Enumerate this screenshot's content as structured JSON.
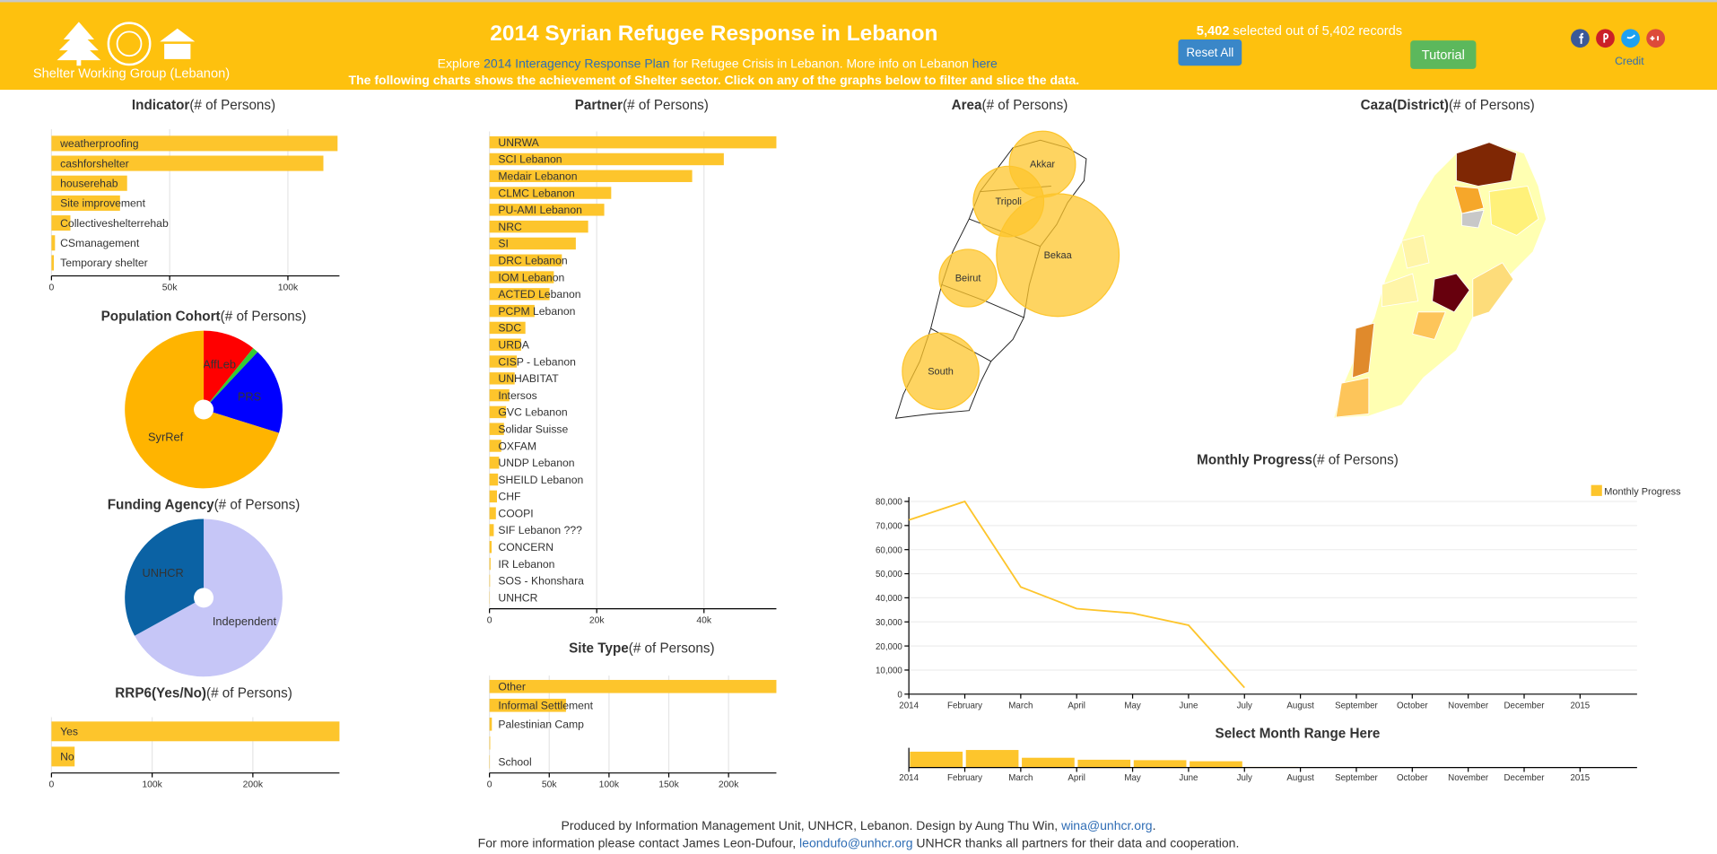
{
  "header": {
    "logo_caption": "Shelter Working Group (Lebanon)",
    "title": "2014 Syrian Refugee Response in Lebanon",
    "intro": [
      "Explore ",
      "2014 Interagency Response Plan",
      " for Refugee Crisis in Lebanon. More info on Lebanon ",
      "here"
    ],
    "instructions": "The following charts shows the achievement of Shelter sector. Click on any of the graphs below to filter and slice the data.",
    "records": {
      "selected": "5,402",
      "selected_text": " selected out of ",
      "total": "5,402",
      "total_text": " records"
    },
    "reset": "Reset All",
    "tutorial": "Tutorial",
    "credit": "Credit"
  },
  "footer": {
    "line1": [
      "Produced by Information Management Unit, UNHCR, Lebanon. Design by Aung Thu Win, ",
      "wina@unhcr.org",
      "."
    ],
    "line2": [
      "For more information please contact James Leon-Dufour, ",
      "leondufo@unhcr.org",
      " UNHCR thanks all partners for their data and cooperation."
    ]
  },
  "chart_data": [
    {
      "type": "hbar",
      "title": "Indicator",
      "unit": "(# of Persons)",
      "categories": [
        "weatherproofing",
        "cashforshelter",
        "houserehab",
        "Site improvement",
        "Collectiveshelterrehab",
        "CSmanagement",
        "Temporary shelter"
      ],
      "values": [
        121000,
        115000,
        32000,
        29000,
        8000,
        1500,
        1000
      ],
      "color": "#fdc52c",
      "xlim": [
        0,
        121800
      ],
      "xticks": [
        0,
        {
          "value": 50000,
          "label": "50k"
        },
        {
          "value": 100000,
          "label": "100k"
        }
      ],
      "grid": true
    },
    {
      "type": "pie",
      "title": "Population Cohort",
      "unit": "(# of Persons)",
      "categories": [
        "AffLeb",
        null,
        "PRS",
        "SyrRef"
      ],
      "values": [
        10.8,
        1.2,
        17.8,
        70.2
      ],
      "colors": [
        "#ff0000",
        "#33cc33",
        "#0000ff",
        "#ffb400"
      ]
    },
    {
      "type": "pie",
      "title": "Funding Agency",
      "unit": "(# of Persons)",
      "categories": [
        "Independent",
        "UNHCR"
      ],
      "values": [
        67,
        33
      ],
      "colors": [
        "#c6c6f7",
        "#0b62a4"
      ]
    },
    {
      "type": "hbar",
      "title": "RRP6(Yes/No)",
      "unit": "(# of Persons)",
      "categories": [
        "Yes",
        "No"
      ],
      "values": [
        286000,
        23000
      ],
      "color": "#fdc52c",
      "xlim": [
        0,
        286000
      ],
      "xticks": [
        0,
        {
          "value": 100000,
          "label": "100k"
        },
        {
          "value": 200000,
          "label": "200k"
        }
      ],
      "grid": true
    },
    {
      "type": "hbar",
      "title": "Partner",
      "unit": "(# of Persons)",
      "categories": [
        "UNRWA",
        "SCI Lebanon",
        "Medair Lebanon",
        "CLMC Lebanon",
        "PU-AMI Lebanon",
        "NRC",
        "SI",
        "DRC Lebanon",
        "IOM Lebanon",
        "ACTED Lebanon",
        "PCPM Lebanon",
        "SDC",
        "URDA",
        "CISP - Lebanon",
        "UNHABITAT",
        "Intersos",
        "GVC Lebanon",
        "Solidar Suisse",
        "OXFAM",
        "UNDP Lebanon",
        "SHEILD Lebanon",
        "CHF",
        "COOPI",
        "SIF Lebanon ???",
        "CONCERN",
        "IR Lebanon",
        "SOS - Khonshara",
        "UNHCR"
      ],
      "values": [
        53500,
        43700,
        37800,
        22700,
        21400,
        18400,
        16100,
        13500,
        12000,
        11200,
        8400,
        6700,
        5900,
        5100,
        4700,
        3700,
        3100,
        2700,
        2200,
        1800,
        1600,
        1400,
        1200,
        800,
        400,
        200,
        100,
        50
      ],
      "color": "#fdc52c",
      "xlim": [
        0,
        53500
      ],
      "xticks": [
        0,
        {
          "value": 20000,
          "label": "20k"
        },
        {
          "value": 40000,
          "label": "40k"
        }
      ],
      "grid": true
    },
    {
      "type": "hbar",
      "title": "Site Type",
      "unit": "(# of Persons)",
      "categories": [
        "Other",
        "Informal Settlement",
        "Palestinian Camp",
        null,
        "School"
      ],
      "values": [
        240000,
        64000,
        2000,
        600,
        300
      ],
      "color": "#fdc52c",
      "xlim": [
        0,
        240000
      ],
      "xticks": [
        0,
        {
          "value": 50000,
          "label": "50k"
        },
        {
          "value": 100000,
          "label": "100k"
        },
        {
          "value": 150000,
          "label": "150k"
        },
        {
          "value": 200000,
          "label": "200k"
        }
      ],
      "grid": true
    },
    {
      "type": "bubble_map",
      "title": "Area",
      "unit": "(# of Persons)",
      "categories": [
        "Akkar",
        "Tripoli",
        "Bekaa",
        "Beirut",
        "South"
      ],
      "values": [
        29000,
        33000,
        100000,
        22000,
        39000
      ],
      "color": "#fdc52c"
    },
    {
      "type": "choropleth",
      "title": "Caza(District)",
      "unit": "(# of Persons)"
    },
    {
      "type": "line",
      "title": "Monthly Progress",
      "unit": "(# of Persons)",
      "categories": [
        "2014",
        "February",
        "March",
        "April",
        "May",
        "June",
        "July",
        "August",
        "September",
        "October",
        "November",
        "December",
        "2015"
      ],
      "series": [
        {
          "name": "Monthly Progress",
          "color": "#fdc52c",
          "values": [
            72300,
            80000,
            44500,
            35500,
            33600,
            28600,
            2700,
            null,
            null,
            null,
            null,
            null,
            null
          ]
        }
      ],
      "ylim": [
        0,
        80000
      ],
      "yticks": [
        0,
        {
          "value": 10000,
          "label": "10,000"
        },
        {
          "value": 20000,
          "label": "20,000"
        },
        {
          "value": 30000,
          "label": "30,000"
        },
        {
          "value": 40000,
          "label": "40,000"
        },
        {
          "value": 50000,
          "label": "50,000"
        },
        {
          "value": 60000,
          "label": "60,000"
        },
        {
          "value": 70000,
          "label": "70,000"
        },
        {
          "value": 80000,
          "label": "80,000"
        }
      ],
      "grid": true,
      "legend": "top-right"
    },
    {
      "type": "range_bar",
      "title": "Select Month Range Here"
    }
  ]
}
